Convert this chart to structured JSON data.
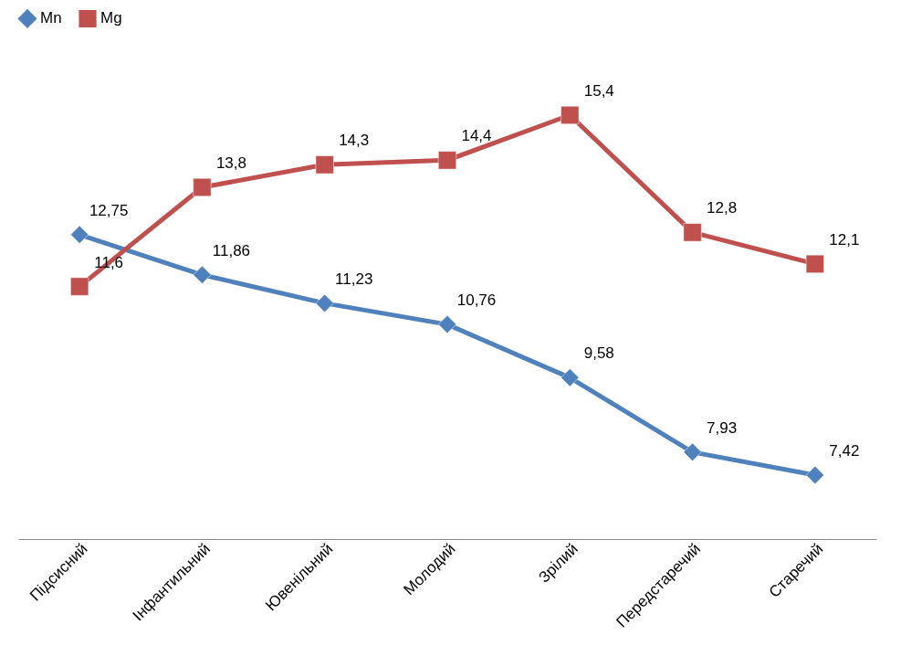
{
  "chart_data": {
    "type": "line",
    "categories": [
      "Підсисний",
      "Інфантильний",
      "Ювенільний",
      "Молодий",
      "Зрілий",
      "Передстаречий",
      "Старечий"
    ],
    "series": [
      {
        "name": "Mn",
        "color": "#4f81bd",
        "marker": "diamond",
        "values": [
          12.75,
          11.86,
          11.23,
          10.76,
          9.58,
          7.93,
          7.42
        ],
        "value_labels": [
          "12,75",
          "11,86",
          "11,23",
          "10,76",
          "9,58",
          "7,93",
          "7,42"
        ]
      },
      {
        "name": "Mg",
        "color": "#c0504d",
        "marker": "square",
        "values": [
          11.6,
          13.8,
          14.3,
          14.4,
          15.4,
          12.8,
          12.1
        ],
        "value_labels": [
          "11,6",
          "13,8",
          "14,3",
          "14,4",
          "15,4",
          "12,8",
          "12,1"
        ]
      }
    ],
    "tick_labels": "x",
    "grid": false,
    "legend": "top"
  }
}
